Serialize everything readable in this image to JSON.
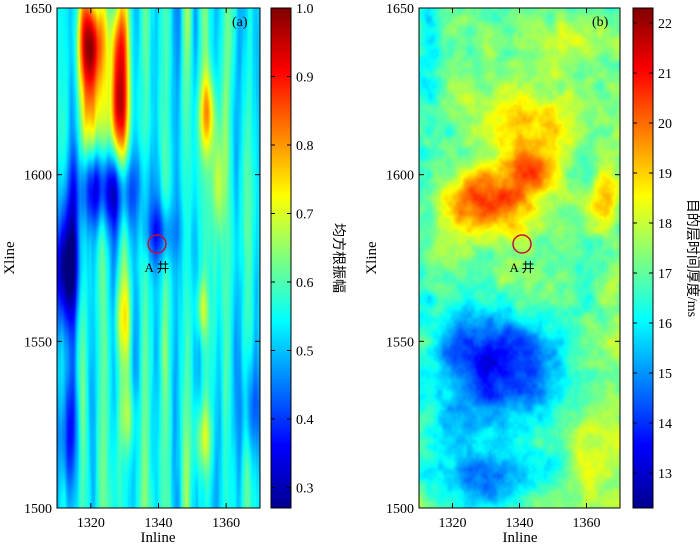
{
  "chart_data": [
    {
      "type": "heatmap",
      "panel_label": "(a)",
      "xlabel": "Inline",
      "ylabel": "Xline",
      "xlim": [
        1310,
        1370
      ],
      "ylim": [
        1500,
        1650
      ],
      "xticks": [
        1320,
        1340,
        1360
      ],
      "yticks": [
        1500,
        1550,
        1600,
        1650
      ],
      "colorbar": {
        "label": "均方根振幅",
        "range": [
          0.27,
          1.0
        ],
        "ticks": [
          0.3,
          0.4,
          0.5,
          0.6,
          0.7,
          0.8,
          0.9,
          1.0
        ],
        "tick_labels": [
          "0.3",
          "0.4",
          "0.5",
          "0.6",
          "0.7",
          "0.8",
          "0.9",
          "1.0"
        ]
      },
      "annotation": {
        "text": "A 井",
        "inline": 1340,
        "xline": 1580
      },
      "colormap": "jet"
    },
    {
      "type": "heatmap",
      "panel_label": "(b)",
      "xlabel": "Inline",
      "ylabel": "Xline",
      "xlim": [
        1310,
        1370
      ],
      "ylim": [
        1500,
        1650
      ],
      "xticks": [
        1320,
        1340,
        1360
      ],
      "yticks": [
        1500,
        1550,
        1600,
        1650
      ],
      "colorbar": {
        "label": "目的层时间厚度/ms",
        "range": [
          12.3,
          22.3
        ],
        "ticks": [
          13,
          14,
          15,
          16,
          17,
          18,
          19,
          20,
          21,
          22
        ],
        "tick_labels": [
          "13",
          "14",
          "15",
          "16",
          "17",
          "18",
          "19",
          "20",
          "21",
          "22"
        ]
      },
      "annotation": {
        "text": "A 井",
        "inline": 1340,
        "xline": 1580
      },
      "colormap": "jet"
    }
  ]
}
